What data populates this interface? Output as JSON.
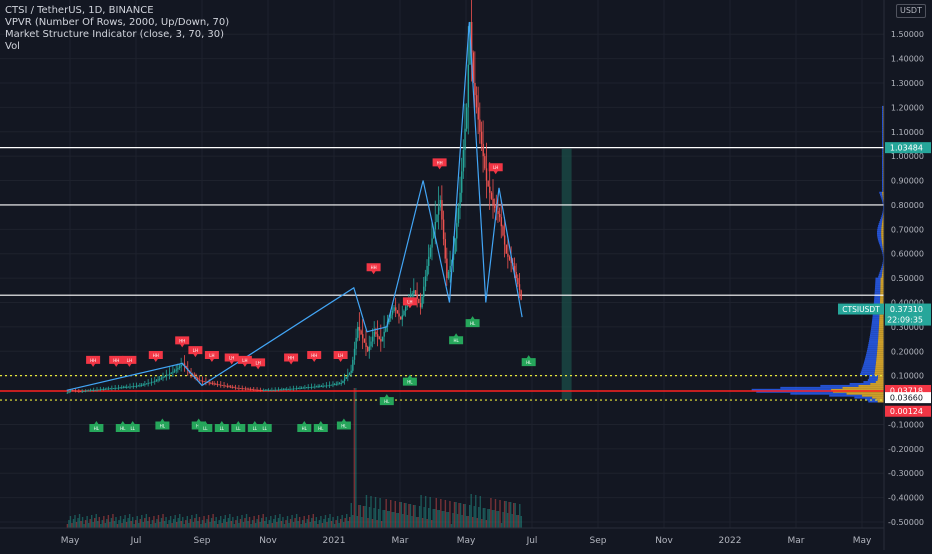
{
  "chart_data": {
    "type": "line",
    "title": "CTSI / TetherUS, 1D, BINANCE",
    "indicators": [
      "VPVR (Number Of Rows, 2000, Up/Down, 70)",
      "Market Structure Indicator (close, 3, 70, 30)",
      "Vol"
    ],
    "currency": "USDT",
    "ylim": [
      -0.5,
      1.55
    ],
    "y_ticks": [
      1.5,
      1.4,
      1.3,
      1.2,
      1.1,
      1.0,
      0.9,
      0.8,
      0.7,
      0.6,
      0.5,
      0.4,
      0.3,
      0.2,
      0.1,
      -0.1,
      -0.2,
      -0.3,
      -0.4,
      -0.5
    ],
    "y_tick_labels": [
      "1.50000",
      "1.40000",
      "1.30000",
      "1.20000",
      "1.10000",
      "1.00000",
      "0.90000",
      "0.80000",
      "0.70000",
      "0.60000",
      "0.50000",
      "0.40000",
      "0.30000",
      "0.20000",
      "0.10000",
      "-0.10000",
      "-0.20000",
      "-0.30000",
      "-0.40000",
      "-0.50000"
    ],
    "x_ticks": [
      {
        "label": "May",
        "month": 0
      },
      {
        "label": "Jul",
        "month": 2
      },
      {
        "label": "Sep",
        "month": 4
      },
      {
        "label": "Nov",
        "month": 6
      },
      {
        "label": "2021",
        "month": 8
      },
      {
        "label": "Mar",
        "month": 10
      },
      {
        "label": "May",
        "month": 12
      },
      {
        "label": "Jul",
        "month": 14
      },
      {
        "label": "Sep",
        "month": 16
      },
      {
        "label": "Nov",
        "month": 18
      },
      {
        "label": "2022",
        "month": 20
      },
      {
        "label": "Mar",
        "month": 22
      },
      {
        "label": "May",
        "month": 24
      }
    ],
    "price_series": [
      [
        -0.1,
        0.03
      ],
      [
        0.0,
        0.04
      ],
      [
        0.3,
        0.035
      ],
      [
        0.6,
        0.04
      ],
      [
        1.0,
        0.045
      ],
      [
        1.4,
        0.05
      ],
      [
        1.8,
        0.055
      ],
      [
        2.1,
        0.06
      ],
      [
        2.5,
        0.075
      ],
      [
        2.9,
        0.1
      ],
      [
        3.2,
        0.125
      ],
      [
        3.4,
        0.15
      ],
      [
        3.6,
        0.11
      ],
      [
        3.9,
        0.08
      ],
      [
        4.2,
        0.07
      ],
      [
        4.6,
        0.06
      ],
      [
        5.0,
        0.05
      ],
      [
        5.4,
        0.045
      ],
      [
        5.8,
        0.04
      ],
      [
        6.2,
        0.042
      ],
      [
        6.6,
        0.045
      ],
      [
        7.0,
        0.05
      ],
      [
        7.4,
        0.055
      ],
      [
        7.8,
        0.06
      ],
      [
        8.2,
        0.07
      ],
      [
        8.5,
        0.12
      ],
      [
        8.7,
        0.3
      ],
      [
        8.8,
        0.27
      ],
      [
        9.0,
        0.2
      ],
      [
        9.2,
        0.28
      ],
      [
        9.4,
        0.24
      ],
      [
        9.6,
        0.32
      ],
      [
        9.8,
        0.38
      ],
      [
        10.0,
        0.33
      ],
      [
        10.2,
        0.4
      ],
      [
        10.4,
        0.45
      ],
      [
        10.6,
        0.38
      ],
      [
        10.8,
        0.55
      ],
      [
        11.0,
        0.7
      ],
      [
        11.2,
        0.82
      ],
      [
        11.4,
        0.5
      ],
      [
        11.6,
        0.6
      ],
      [
        11.8,
        0.85
      ],
      [
        12.0,
        1.2
      ],
      [
        12.1,
        1.55
      ],
      [
        12.2,
        1.3
      ],
      [
        12.4,
        1.1
      ],
      [
        12.6,
        0.9
      ],
      [
        12.8,
        0.8
      ],
      [
        13.0,
        0.75
      ],
      [
        13.2,
        0.6
      ],
      [
        13.4,
        0.55
      ],
      [
        13.6,
        0.45
      ],
      [
        13.7,
        0.3731
      ]
    ],
    "structure_zigzag": [
      [
        -0.1,
        0.04
      ],
      [
        3.4,
        0.15
      ],
      [
        4.0,
        0.06
      ],
      [
        8.6,
        0.46
      ],
      [
        9.0,
        0.28
      ],
      [
        9.6,
        0.3
      ],
      [
        10.7,
        0.9
      ],
      [
        11.5,
        0.4
      ],
      [
        12.1,
        1.55
      ],
      [
        12.6,
        0.4
      ],
      [
        13.0,
        0.87
      ],
      [
        13.7,
        0.34
      ]
    ],
    "markers_high": [
      {
        "month": 0.7,
        "price": 0.14,
        "label": "HH"
      },
      {
        "month": 1.4,
        "price": 0.14,
        "label": "HH"
      },
      {
        "month": 1.8,
        "price": 0.14,
        "label": "LH"
      },
      {
        "month": 2.6,
        "price": 0.16,
        "label": "HH"
      },
      {
        "month": 3.4,
        "price": 0.22,
        "label": "HH"
      },
      {
        "month": 3.8,
        "price": 0.18,
        "label": "LH"
      },
      {
        "month": 4.3,
        "price": 0.16,
        "label": "LH"
      },
      {
        "month": 4.9,
        "price": 0.15,
        "label": "LH"
      },
      {
        "month": 5.3,
        "price": 0.14,
        "label": "LH"
      },
      {
        "month": 5.7,
        "price": 0.13,
        "label": "LH"
      },
      {
        "month": 6.7,
        "price": 0.15,
        "label": "HH"
      },
      {
        "month": 7.4,
        "price": 0.16,
        "label": "HH"
      },
      {
        "month": 8.2,
        "price": 0.16,
        "label": "LH"
      },
      {
        "month": 9.2,
        "price": 0.52,
        "label": "HH"
      },
      {
        "month": 10.3,
        "price": 0.38,
        "label": "LH"
      },
      {
        "month": 11.2,
        "price": 0.95,
        "label": "HH"
      },
      {
        "month": 12.9,
        "price": 0.93,
        "label": "LH"
      }
    ],
    "markers_low": [
      {
        "month": 0.8,
        "price": -0.09,
        "label": "HL"
      },
      {
        "month": 1.6,
        "price": -0.09,
        "label": "HL"
      },
      {
        "month": 1.9,
        "price": -0.09,
        "label": "LL"
      },
      {
        "month": 2.8,
        "price": -0.08,
        "label": "HL"
      },
      {
        "month": 3.9,
        "price": -0.08,
        "label": "HL"
      },
      {
        "month": 4.1,
        "price": -0.09,
        "label": "LL"
      },
      {
        "month": 4.6,
        "price": -0.09,
        "label": "LL"
      },
      {
        "month": 5.1,
        "price": -0.09,
        "label": "LL"
      },
      {
        "month": 5.6,
        "price": -0.09,
        "label": "LL"
      },
      {
        "month": 5.9,
        "price": -0.09,
        "label": "LL"
      },
      {
        "month": 7.1,
        "price": -0.09,
        "label": "HL"
      },
      {
        "month": 7.6,
        "price": -0.09,
        "label": "HL"
      },
      {
        "month": 8.3,
        "price": -0.08,
        "label": "HL"
      },
      {
        "month": 9.6,
        "price": 0.02,
        "label": "HL"
      },
      {
        "month": 10.3,
        "price": 0.1,
        "label": "HL"
      },
      {
        "month": 11.7,
        "price": 0.27,
        "label": "HL"
      },
      {
        "month": 12.2,
        "price": 0.34,
        "label": "HL"
      },
      {
        "month": 13.9,
        "price": 0.18,
        "label": "HL"
      }
    ],
    "h_lines": [
      {
        "price": 1.03484,
        "color": "#ffffff",
        "style": "solid"
      },
      {
        "price": 0.8,
        "color": "#ffffff",
        "style": "solid"
      },
      {
        "price": 0.43,
        "color": "#ffffff",
        "style": "solid"
      },
      {
        "price": 0.1,
        "color": "#e8e83a",
        "style": "dotted"
      },
      {
        "price": 0.03718,
        "color": "#ff2020",
        "style": "solid"
      },
      {
        "price": 0.0,
        "color": "#e8e83a",
        "style": "dotted"
      }
    ],
    "highlight_band": [
      14.9,
      15.2
    ],
    "price_labels": [
      {
        "price": 1.03484,
        "text": "1.03484",
        "bg": "#26a69a",
        "fg": "#ffffff"
      },
      {
        "price": 0.3731,
        "text": "0.37310",
        "bg": "#26a69a",
        "fg": "#ffffff",
        "sub": "22:09:35",
        "tag": "CTSIUSDT"
      },
      {
        "price": 0.03718,
        "text": "0.03718",
        "bg": "#f23645",
        "fg": "#ffffff"
      },
      {
        "price": 0.0366,
        "text": "0.03660",
        "bg": "#ffffff",
        "fg": "#131722"
      },
      {
        "price": 0.00124,
        "text": "0.00124",
        "bg": "#f23645",
        "fg": "#ffffff"
      }
    ],
    "volume_peak_month": 8.6,
    "grid": true,
    "colors": {
      "background": "#131722",
      "grid": "#1e222d",
      "axis_text": "#b2b5be",
      "up": "#26a69a",
      "down": "#ef5350",
      "zigzag": "#42a5f5",
      "band": "#1b4d48",
      "vpvr_up": "#2962ff",
      "vpvr_down": "#fbc02d",
      "marker_high": "#f23645",
      "marker_low": "#26a65b"
    }
  }
}
